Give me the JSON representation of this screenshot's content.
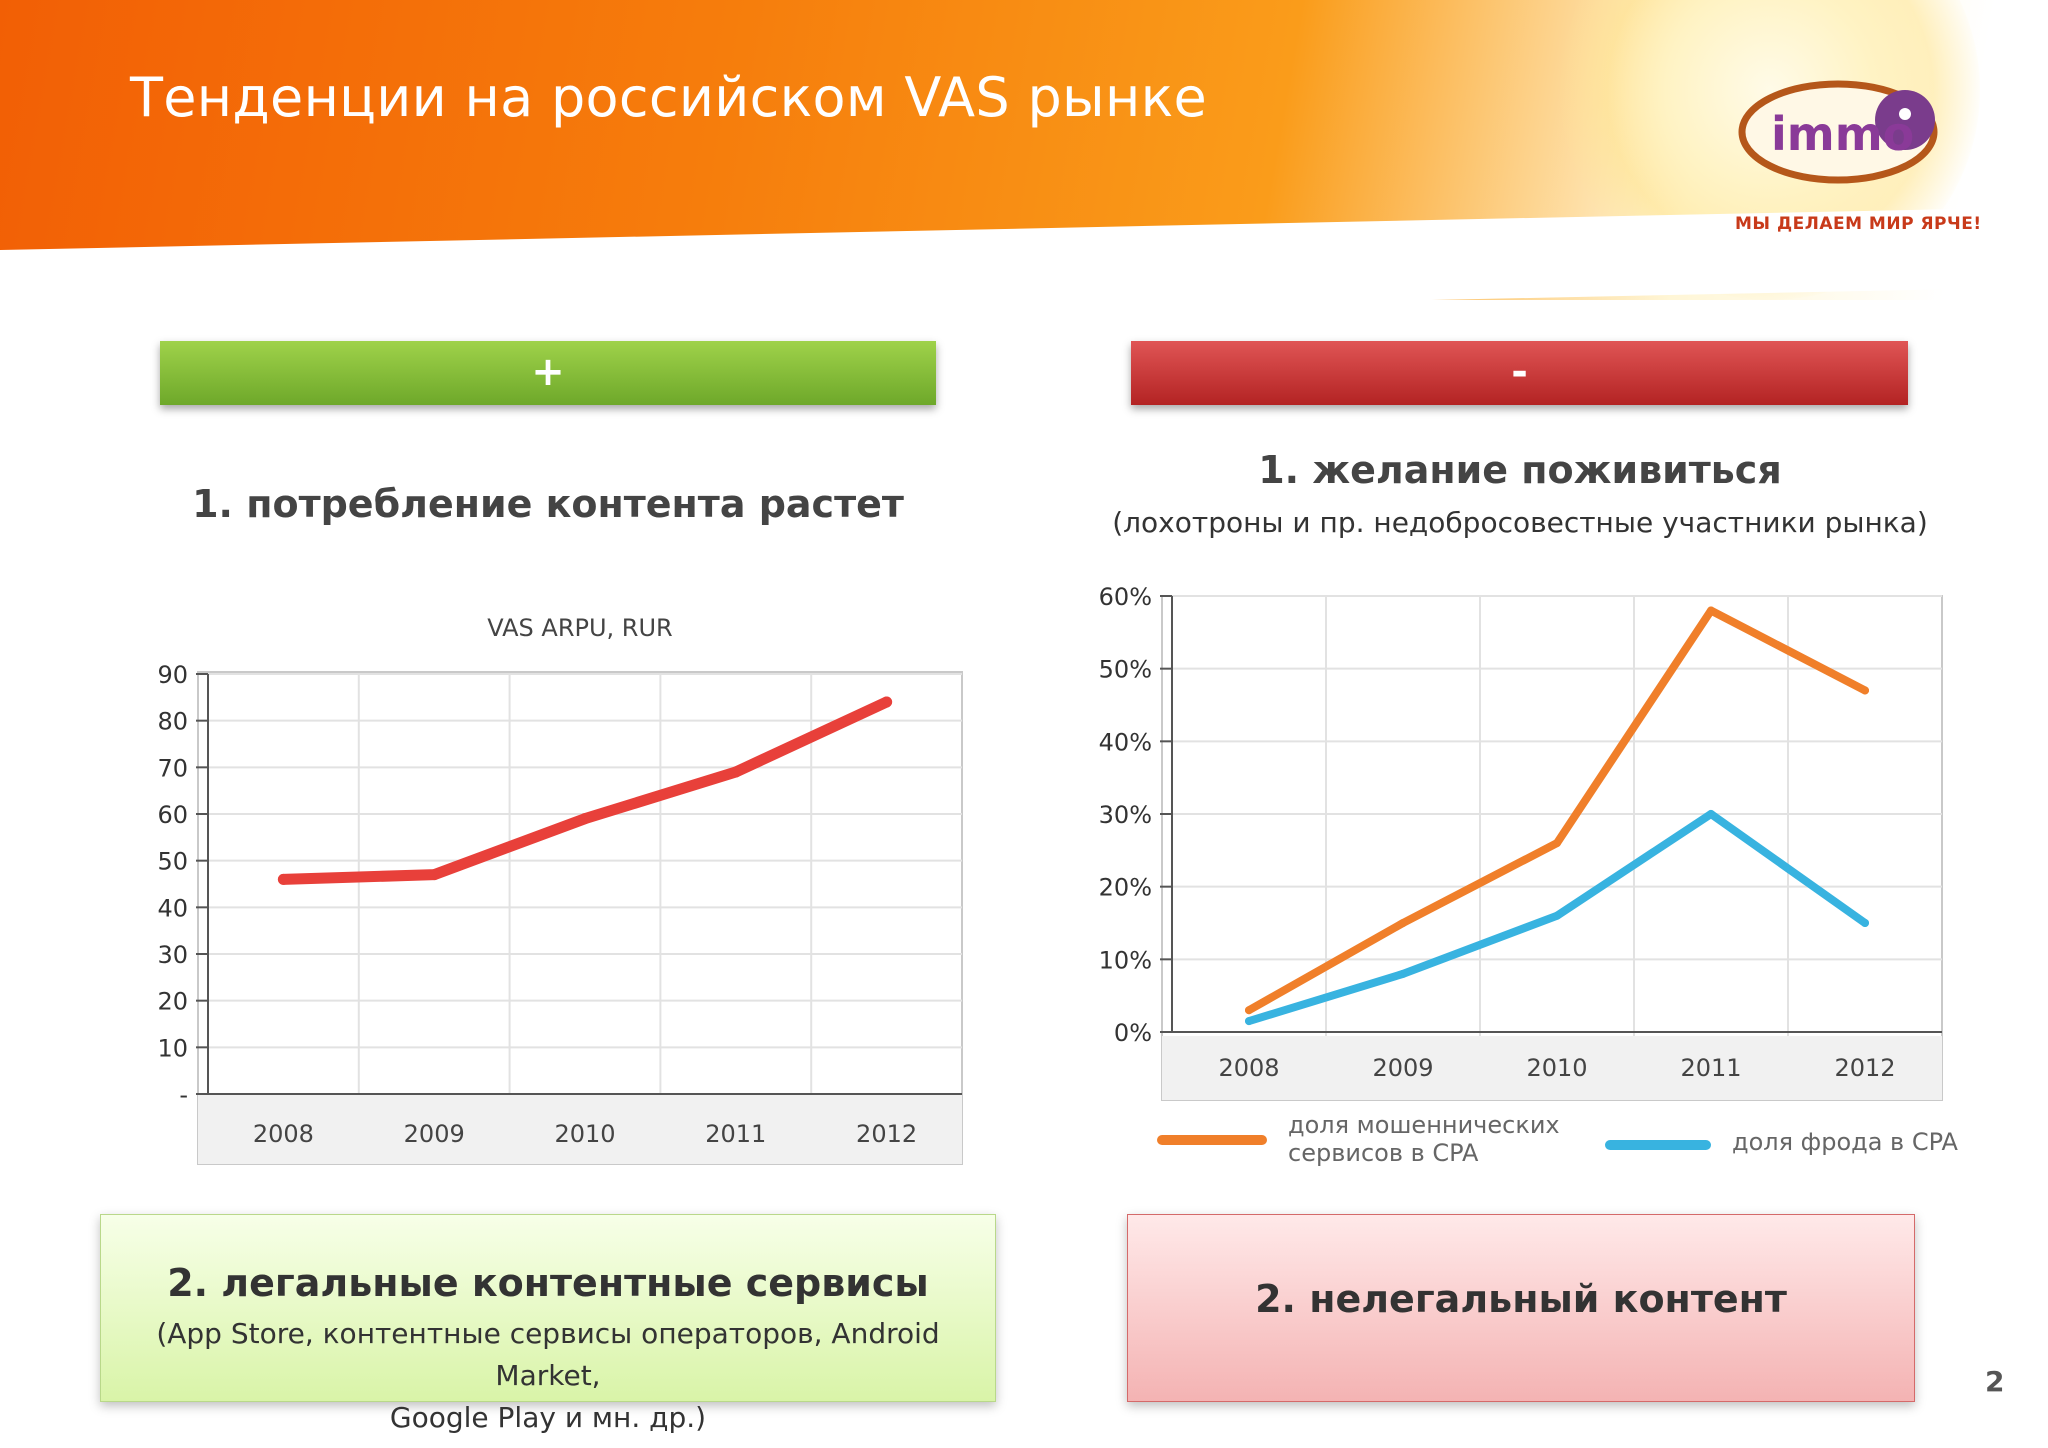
{
  "header": {
    "title": "Тенденции на российском VAS рынке",
    "logo_text": "immo",
    "slogan": "МЫ ДЕЛАЕМ МИР ЯРЧЕ!"
  },
  "left": {
    "bar_label": "+",
    "heading": "1. потребление контента растет",
    "box_title": "2. легальные контентные сервисы",
    "box_text_line1": "(App Store, контентные сервисы операторов, Android Market,",
    "box_text_line2": "Google Play и мн. др.)"
  },
  "right": {
    "bar_label": "-",
    "heading": "1. желание поживиться",
    "subheading": "(лохотроны и пр. недобросовестные участники рынка)",
    "box_title": "2. нелегальный контент"
  },
  "page_number": "2",
  "colors": {
    "accent_orange": "#f36c0a",
    "plus_green": "#7fb536",
    "minus_red": "#c63030",
    "arpu_line": "#e8403a",
    "fraud_services_line": "#f07f2a",
    "fraud_cpa_line": "#38b3e0"
  },
  "chart_data": [
    {
      "type": "line",
      "title": "VAS ARPU, RUR",
      "categories": [
        "2008",
        "2009",
        "2010",
        "2011",
        "2012"
      ],
      "series": [
        {
          "values": [
            46,
            47,
            59,
            69,
            84
          ]
        }
      ],
      "ylim": [
        0,
        90
      ],
      "yticks": [
        "-",
        "10",
        "20",
        "30",
        "40",
        "50",
        "60",
        "70",
        "80",
        "90"
      ],
      "grid": true,
      "legend": "none"
    },
    {
      "type": "line",
      "categories": [
        "2008",
        "2009",
        "2010",
        "2011",
        "2012"
      ],
      "series": [
        {
          "name": "доля мошеннических сервисов в CPA",
          "values": [
            3,
            15,
            26,
            58,
            47
          ]
        },
        {
          "name": "доля фрода в CPA",
          "values": [
            1.5,
            8,
            16,
            30,
            15
          ]
        }
      ],
      "ylim": [
        0,
        60
      ],
      "yticks": [
        "0%",
        "10%",
        "20%",
        "30%",
        "40%",
        "50%",
        "60%"
      ],
      "grid": true,
      "legend": "bottom"
    }
  ]
}
